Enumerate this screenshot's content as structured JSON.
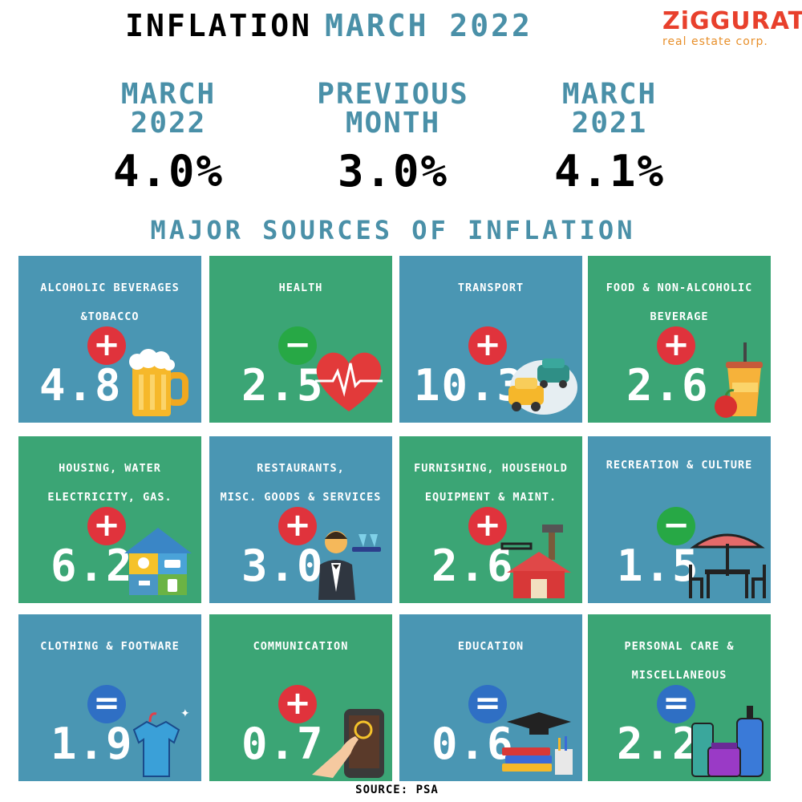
{
  "header": {
    "title_part1": "INFLATION",
    "title_part2": "MARCH 2022"
  },
  "logo": {
    "name": "ZiGGURAT",
    "subtitle": "real estate corp."
  },
  "stats": [
    {
      "label": "MARCH\n2022",
      "value": "4.0%"
    },
    {
      "label": "PREVIOUS\nMONTH",
      "value": "3.0%"
    },
    {
      "label": "MARCH\n2021",
      "value": "4.1%"
    }
  ],
  "section_title": "MAJOR SOURCES OF INFLATION",
  "tiles": [
    {
      "title": "ALCOHOLIC BEVERAGES\n&TOBACCO",
      "sign": "+",
      "value": "4.8",
      "icon": "beer-mug-icon"
    },
    {
      "title": "HEALTH",
      "sign": "−",
      "value": "2.5",
      "icon": "heart-pulse-icon"
    },
    {
      "title": "TRANSPORT",
      "sign": "+",
      "value": "10.3",
      "icon": "cars-icon"
    },
    {
      "title": "FOOD & NON-ALCOHOLIC\nBEVERAGE",
      "sign": "+",
      "value": "2.6",
      "icon": "drink-apple-icon"
    },
    {
      "title": "HOUSING, WATER\nELECTRICITY, GAS.",
      "sign": "+",
      "value": "6.2",
      "icon": "house-utilities-icon"
    },
    {
      "title": "RESTAURANTS,\nMISC. GOODS & SERVICES",
      "sign": "+",
      "value": "3.0",
      "icon": "waiter-icon"
    },
    {
      "title": "FURNISHING, HOUSEHOLD\nEQUIPMENT  & MAINT.",
      "sign": "+",
      "value": "2.6",
      "icon": "house-tools-icon"
    },
    {
      "title": "RECREATION & CULTURE",
      "sign": "−",
      "value": "1.5",
      "icon": "patio-table-icon"
    },
    {
      "title": "CLOTHING & FOOTWARE",
      "sign": "=",
      "value": "1.9",
      "icon": "shirt-icon"
    },
    {
      "title": "COMMUNICATION",
      "sign": "+",
      "value": "0.7",
      "icon": "smartphone-touch-icon"
    },
    {
      "title": "EDUCATION",
      "sign": "=",
      "value": "0.6",
      "icon": "graduation-books-icon"
    },
    {
      "title": "PERSONAL CARE &\nMISCELLANEOUS",
      "sign": "=",
      "value": "2.2",
      "icon": "cosmetics-icon"
    }
  ],
  "colors": {
    "blue_tile": "#4a96b3",
    "green_tile": "#3ba575",
    "accent": "#4a90a8",
    "plus": "#e0333c",
    "minus": "#27a845",
    "equal": "#2f6fc4"
  },
  "source": "SOURCE: PSA"
}
